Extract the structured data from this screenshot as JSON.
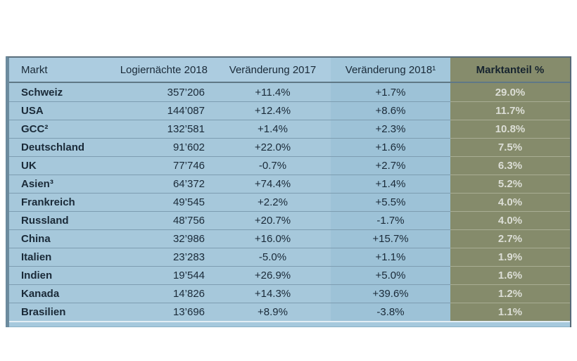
{
  "chart_data": {
    "type": "table",
    "title": "",
    "columns": [
      "Markt",
      "Logiernächte 2018",
      "Veränderung 2017",
      "Veränderung 2018¹",
      "Marktanteil %"
    ],
    "rows": [
      {
        "market": "Schweiz",
        "nights": "357’206",
        "change_2017": "+11.4%",
        "change_2018": "+1.7%",
        "market_share": "29.0%"
      },
      {
        "market": "USA",
        "nights": "144’087",
        "change_2017": "+12.4%",
        "change_2018": "+8.6%",
        "market_share": "11.7%"
      },
      {
        "market": "GCC²",
        "nights": "132’581",
        "change_2017": "+1.4%",
        "change_2018": "+2.3%",
        "market_share": "10.8%"
      },
      {
        "market": "Deutschland",
        "nights": "91’602",
        "change_2017": "+22.0%",
        "change_2018": "+1.6%",
        "market_share": "7.5%"
      },
      {
        "market": "UK",
        "nights": "77’746",
        "change_2017": "-0.7%",
        "change_2018": "+2.7%",
        "market_share": "6.3%"
      },
      {
        "market": "Asien³",
        "nights": "64’372",
        "change_2017": "+74.4%",
        "change_2018": "+1.4%",
        "market_share": "5.2%"
      },
      {
        "market": "Frankreich",
        "nights": "49’545",
        "change_2017": "+2.2%",
        "change_2018": "+5.5%",
        "market_share": "4.0%"
      },
      {
        "market": "Russland",
        "nights": "48’756",
        "change_2017": "+20.7%",
        "change_2018": "-1.7%",
        "market_share": "4.0%"
      },
      {
        "market": "China",
        "nights": "32’986",
        "change_2017": "+16.0%",
        "change_2018": "+15.7%",
        "market_share": "2.7%"
      },
      {
        "market": "Italien",
        "nights": "23’283",
        "change_2017": "-5.0%",
        "change_2018": "+1.1%",
        "market_share": "1.9%"
      },
      {
        "market": "Indien",
        "nights": "19’544",
        "change_2017": "+26.9%",
        "change_2018": "+5.0%",
        "market_share": "1.6%"
      },
      {
        "market": "Kanada",
        "nights": "14’826",
        "change_2017": "+14.3%",
        "change_2018": "+39.6%",
        "market_share": "1.2%"
      },
      {
        "market": "Brasilien",
        "nights": "13’696",
        "change_2017": "+8.9%",
        "change_2018": "-3.8%",
        "market_share": "1.1%"
      }
    ],
    "layout": {
      "grid": "horizontal-row-separators",
      "highlight_column": "Marktanteil %"
    }
  },
  "colors": {
    "body_blue": "#a6c8db",
    "column_2018_blue": "#9dc2d7",
    "header_blue": "#accce0",
    "olive_highlight": "#858b6b",
    "text_navy": "#1a2a38",
    "share_text_light": "#dcded6"
  }
}
